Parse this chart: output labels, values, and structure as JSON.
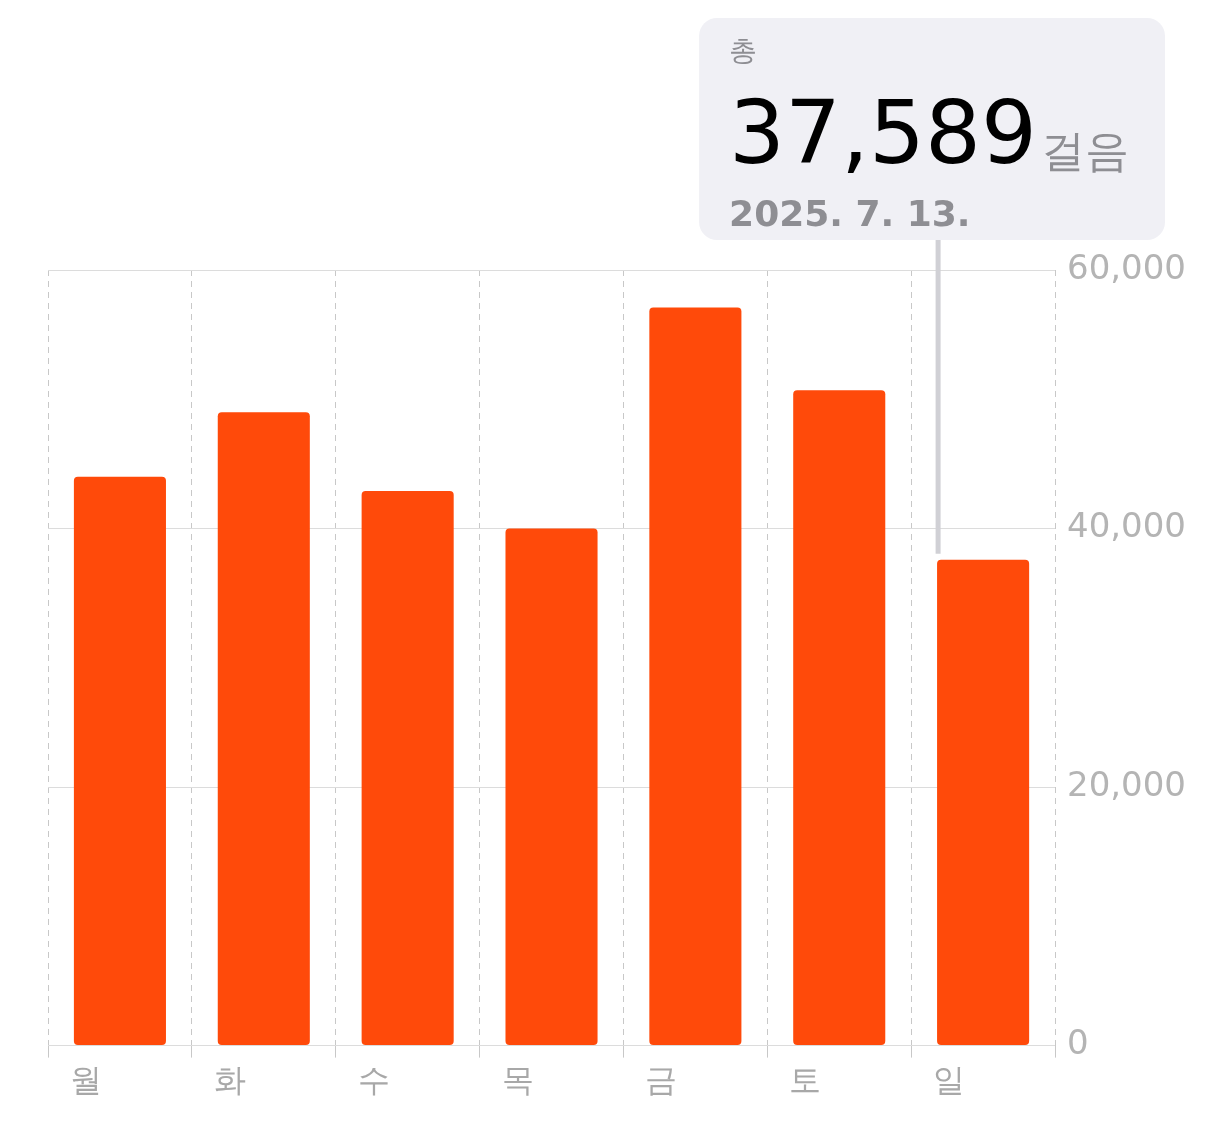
{
  "chart_data": {
    "type": "bar",
    "categories": [
      "월",
      "화",
      "수",
      "목",
      "금",
      "토",
      "일"
    ],
    "values": [
      44000,
      49000,
      42900,
      40000,
      57100,
      50700,
      37589
    ],
    "value_labels": [
      null,
      null,
      null,
      null,
      null,
      null,
      "37,589"
    ],
    "annotations": [
      "총",
      "걸음",
      "2025. 7. 13."
    ],
    "color": "#ff4a0a",
    "ylim": [
      0,
      60000
    ],
    "yticks": [
      0,
      {
        "value": 20000,
        "label": "20,000"
      },
      {
        "value": 40000,
        "label": "40,000"
      },
      {
        "value": 60000,
        "label": "60,000"
      }
    ],
    "grid": true
  }
}
